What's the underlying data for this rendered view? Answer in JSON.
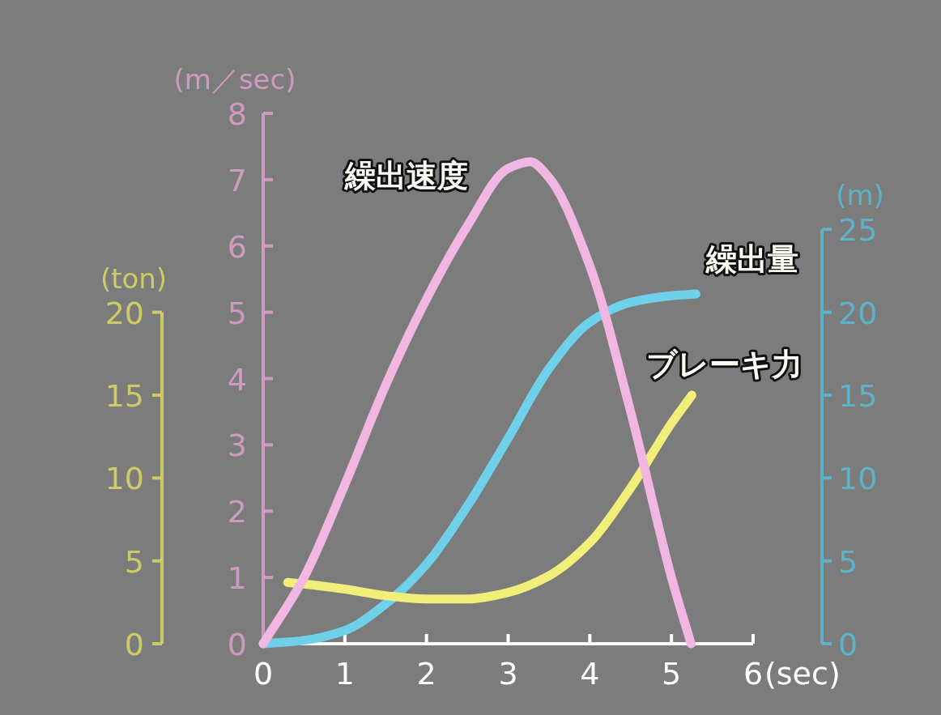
{
  "chart_data": {
    "type": "line",
    "xlabel": "(sec)",
    "ylabel": "(m／sec)",
    "y2label": "(m)",
    "y3label": "(ton)",
    "xlim": [
      0,
      6
    ],
    "xticks": [
      0,
      1,
      2,
      3,
      4,
      5,
      6
    ],
    "ylim": [
      0,
      8
    ],
    "yticks": [
      0,
      1,
      2,
      3,
      4,
      5,
      6,
      7,
      8
    ],
    "y2lim": [
      0,
      32
    ],
    "y2ticks": [
      0,
      5,
      10,
      15,
      20,
      25
    ],
    "y3lim": [
      0,
      32
    ],
    "y3ticks": [
      0,
      5,
      10,
      15,
      20
    ],
    "marker": "none",
    "line_style": "solid",
    "series": [
      {
        "name": "繰出量",
        "color": "#6fd0ea",
        "axis": "y2",
        "x": [
          0,
          0.5,
          1,
          1.5,
          2,
          2.5,
          3,
          3.5,
          4,
          4.5,
          5,
          5.3
        ],
        "values": [
          0,
          0.2,
          0.8,
          2.4,
          4.8,
          8.3,
          12.4,
          16.6,
          19.4,
          20.6,
          21.0,
          21.1
        ]
      },
      {
        "name": "ブレーキ力",
        "color": "#f2ee7a",
        "axis": "y3",
        "x": [
          0.3,
          0.5,
          1,
          1.5,
          2,
          2.5,
          3,
          3.5,
          4,
          4.5,
          5,
          5.25
        ],
        "values": [
          3.7,
          3.6,
          3.3,
          2.9,
          2.7,
          2.7,
          3.1,
          4.1,
          6.1,
          9.4,
          13.3,
          15.0
        ]
      },
      {
        "name": "繰出速度",
        "color": "#f2b6e2",
        "axis": "y",
        "x": [
          0,
          0.5,
          1,
          1.5,
          2,
          2.5,
          3,
          3.27,
          3.5,
          4,
          4.5,
          5,
          5.24
        ],
        "values": [
          0,
          1.0,
          2.4,
          3.9,
          5.2,
          6.3,
          7.17,
          7.27,
          7.03,
          5.7,
          3.5,
          1.0,
          0
        ]
      }
    ]
  }
}
